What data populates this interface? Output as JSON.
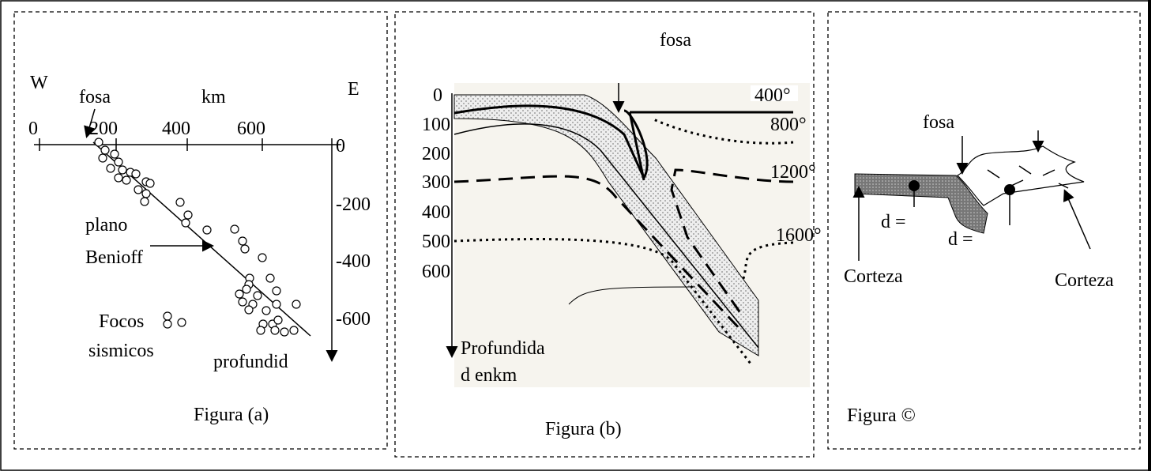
{
  "panel_a": {
    "west": "W",
    "east": "E",
    "trench": "fosa",
    "unit": "km",
    "x_labels": [
      "0",
      "200",
      "400",
      "600"
    ],
    "y_labels": [
      "0",
      "-200",
      "-400",
      "-600"
    ],
    "plane": [
      "plano",
      "Benioff"
    ],
    "foci": [
      "Focos",
      "sismicos"
    ],
    "depth": "profundid",
    "caption": "Figura (a)"
  },
  "panel_b": {
    "trench": "fosa",
    "depth_labels": [
      "0",
      "100",
      "200",
      "300",
      "400",
      "500",
      "600"
    ],
    "isotherms": [
      "400°",
      "800°",
      "1200°",
      "1600°"
    ],
    "axis_label": [
      "Profundida",
      "d enkm"
    ],
    "caption": "Figura (b)"
  },
  "panel_c": {
    "trench": "fosa",
    "d_labels": [
      "d =",
      "d ="
    ],
    "crust_labels": [
      "Corteza",
      "Corteza"
    ],
    "caption": "Figura ©"
  }
}
